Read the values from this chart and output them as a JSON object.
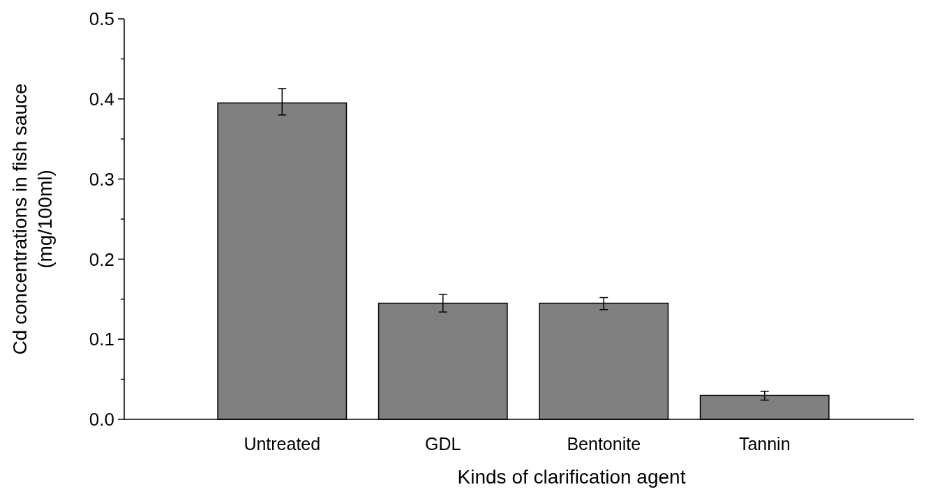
{
  "chart_data": {
    "type": "bar",
    "xlabel": "Kinds of clarification agent",
    "ylabel": "Cd concentrations in fish sauce\n(mg/100ml)",
    "categories": [
      "Untreated",
      "GDL",
      "Bentonite",
      "Tannin"
    ],
    "values": [
      0.395,
      0.145,
      0.145,
      0.03
    ],
    "errors": [
      [
        0.38,
        0.413
      ],
      [
        0.134,
        0.156
      ],
      [
        0.137,
        0.152
      ],
      [
        0.024,
        0.035
      ]
    ],
    "color": "#808080",
    "ylim": [
      0,
      0.5
    ],
    "yticks": [
      {
        "value": 0,
        "label": "0.0"
      },
      {
        "value": 0.05,
        "label": null
      },
      {
        "value": 0.1,
        "label": "0.1"
      },
      {
        "value": 0.15,
        "label": null
      },
      {
        "value": 0.2,
        "label": "0.2"
      },
      {
        "value": 0.25,
        "label": null
      },
      {
        "value": 0.3,
        "label": "0.3"
      },
      {
        "value": 0.35,
        "label": null
      },
      {
        "value": 0.4,
        "label": "0.4"
      },
      {
        "value": 0.45,
        "label": null
      },
      {
        "value": 0.5,
        "label": "0.5"
      }
    ],
    "grid": false
  }
}
